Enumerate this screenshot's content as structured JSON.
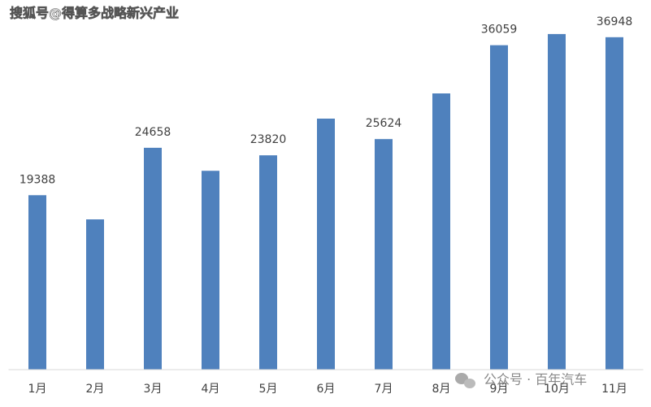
{
  "chart_data": {
    "type": "bar",
    "categories": [
      "1月",
      "2月",
      "3月",
      "4月",
      "5月",
      "6月",
      "7月",
      "8月",
      "9月",
      "10月",
      "11月"
    ],
    "values": [
      19388,
      16700,
      24658,
      22100,
      23820,
      27900,
      25624,
      30700,
      36059,
      37300,
      36948
    ],
    "value_labels": [
      "19388",
      null,
      "24658",
      null,
      "23820",
      null,
      "25624",
      null,
      "36059",
      null,
      "36948"
    ],
    "color": "#4f81bd",
    "ylim": [
      0,
      40000
    ]
  },
  "watermarks": [
    "搜狐号@得算多战略新兴产业",
    "公众号 · 百年汽车"
  ]
}
